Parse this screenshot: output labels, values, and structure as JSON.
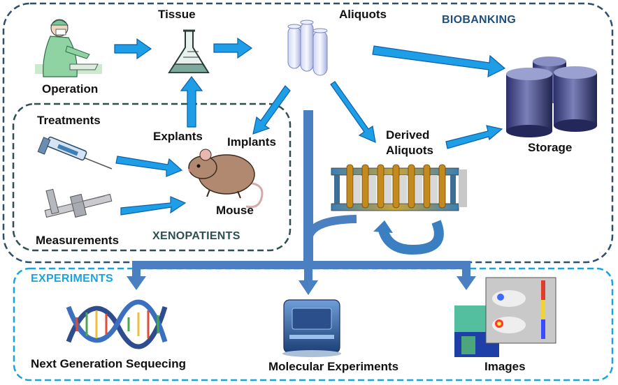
{
  "groups": {
    "biobanking": "BIOBANKING",
    "xenopatients": "XENOPATIENTS",
    "experiments": "EXPERIMENTS"
  },
  "nodes": {
    "operation": "Operation",
    "tissue": "Tissue",
    "aliquots": "Aliquots",
    "storage": "Storage",
    "treatments": "Treatments",
    "explants": "Explants",
    "implants": "Implants",
    "mouse": "Mouse",
    "measurements": "Measurements",
    "derived_line1": "Derived",
    "derived_line2": "Aliquots",
    "ngs": "Next Generation Sequecing",
    "molecular": "Molecular Experiments",
    "images": "Images"
  },
  "colors": {
    "arrow_fill": "#1e9ee6",
    "arrow_stroke": "#0b5fa8",
    "trunk": "#4a7fc1",
    "biobanking_border": "#2e4e6e",
    "xenopatients_border": "#2e4e50",
    "experiments_border": "#1aa3dc",
    "biobanking_text": "#1f4e79",
    "xenopatients_text": "#2e4e50",
    "experiments_text": "#1aa3dc"
  }
}
